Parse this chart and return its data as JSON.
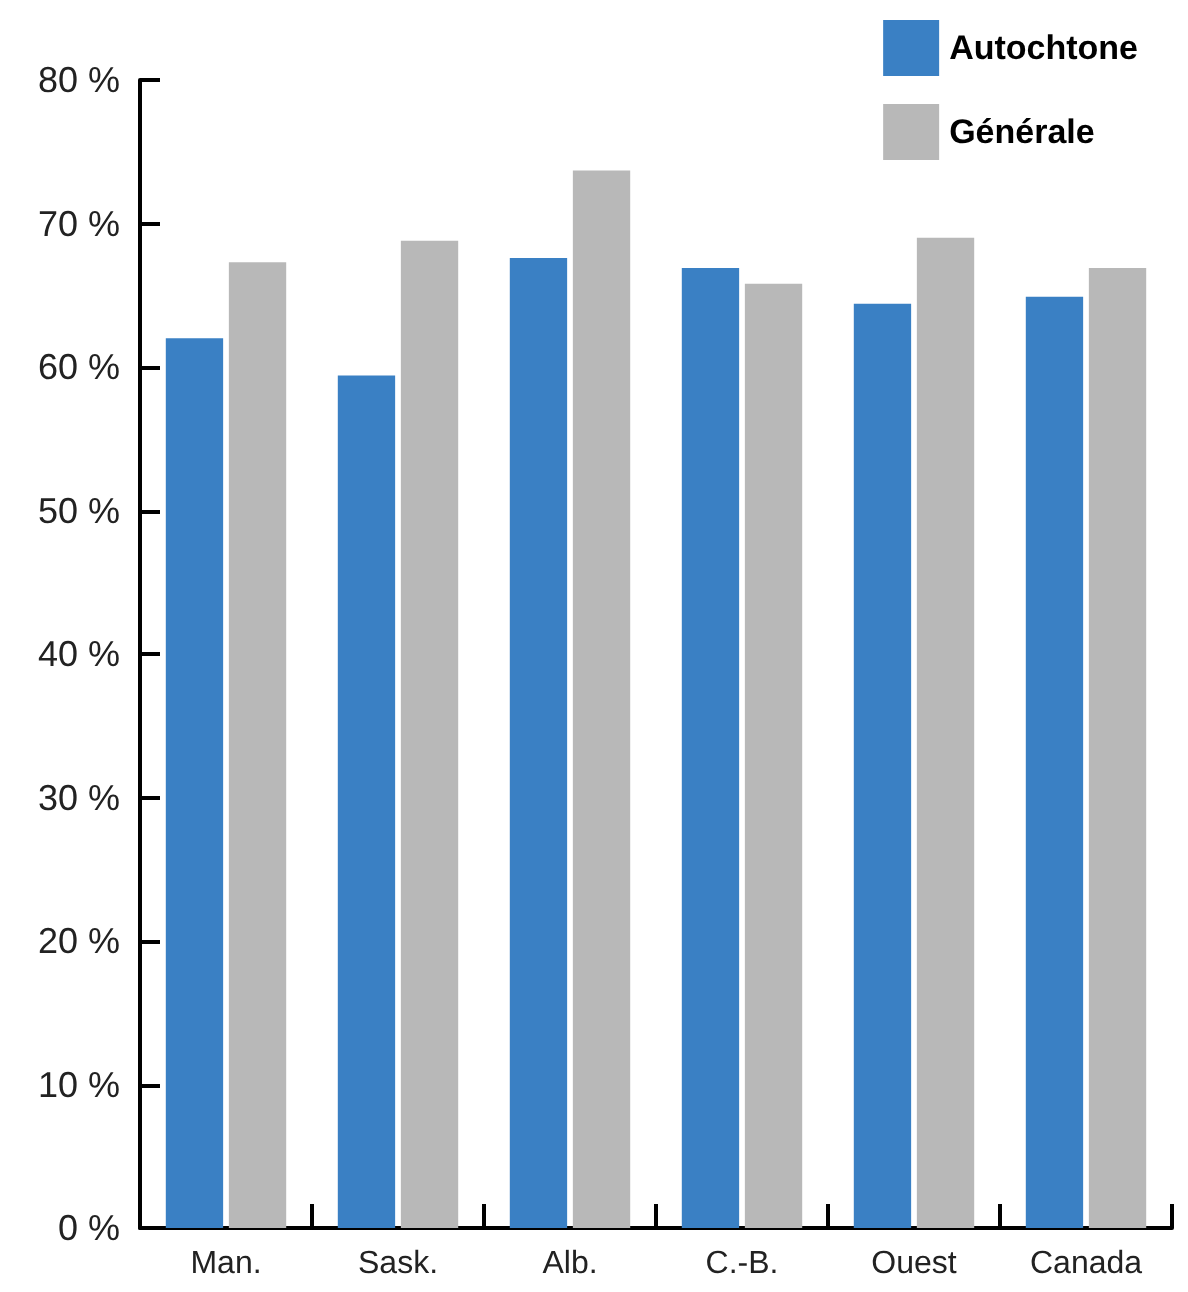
{
  "chart_data": {
    "type": "bar",
    "categories": [
      "Man.",
      "Sask.",
      "Alb.",
      "C.-B.",
      "Ouest",
      "Canada"
    ],
    "series": [
      {
        "name": "Autochtone",
        "color": "#3a80c4",
        "values": [
          62.0,
          59.4,
          67.6,
          66.9,
          64.4,
          64.9
        ]
      },
      {
        "name": "Générale",
        "color": "#b8b8b8",
        "values": [
          67.3,
          68.8,
          73.7,
          65.8,
          69.0,
          66.9
        ]
      }
    ],
    "ylim": [
      0,
      80
    ],
    "yticks": [
      {
        "value": 0,
        "label": "0 %"
      },
      {
        "value": 10,
        "label": "10 %"
      },
      {
        "value": 20,
        "label": "20 %"
      },
      {
        "value": 30,
        "label": "30 %"
      },
      {
        "value": 40,
        "label": "40 %"
      },
      {
        "value": 50,
        "label": "50 %"
      },
      {
        "value": 60,
        "label": "60 %"
      },
      {
        "value": 70,
        "label": "70 %"
      },
      {
        "value": 80,
        "label": "80 %"
      }
    ],
    "grid": false,
    "legend": "top right"
  }
}
